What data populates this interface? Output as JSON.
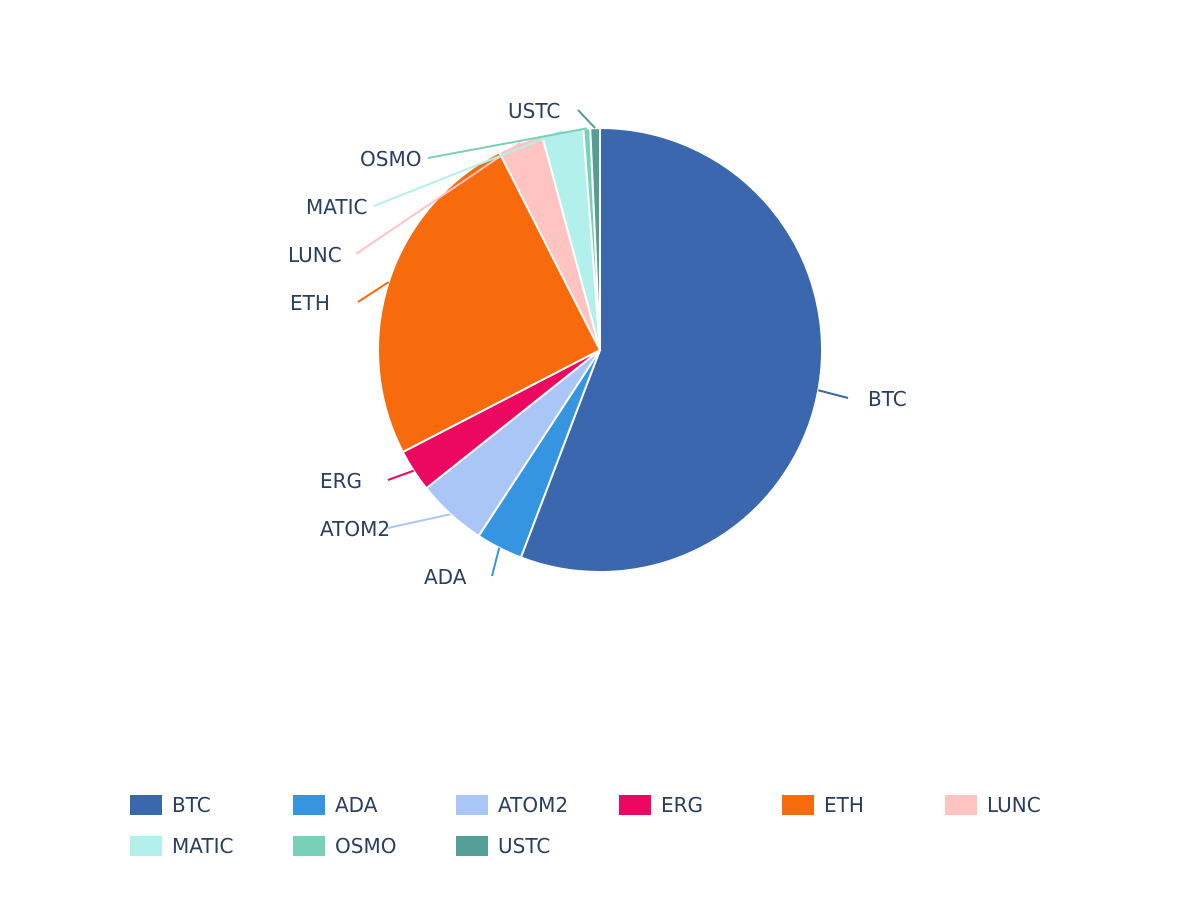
{
  "chart_data": {
    "type": "pie",
    "title": "",
    "categories": [
      "BTC",
      "ADA",
      "ATOM2",
      "ERG",
      "ETH",
      "LUNC",
      "MATIC",
      "OSMO",
      "USTC"
    ],
    "values": [
      55.8,
      3.4,
      5.1,
      3.1,
      25.1,
      3.3,
      3.0,
      0.5,
      0.7
    ],
    "colors": [
      "#3a67ad",
      "#3595e0",
      "#a9c6f7",
      "#ec0761",
      "#f76b0c",
      "#ffc3c2",
      "#b2f0eb",
      "#78d1b6",
      "#559e96"
    ],
    "label_position": "outside",
    "legend_position": "bottom"
  },
  "legend": {
    "items": [
      {
        "label": "BTC",
        "color": "#3a67ad"
      },
      {
        "label": "ADA",
        "color": "#3595e0"
      },
      {
        "label": "ATOM2",
        "color": "#a9c6f7"
      },
      {
        "label": "ERG",
        "color": "#ec0761"
      },
      {
        "label": "ETH",
        "color": "#f76b0c"
      },
      {
        "label": "LUNC",
        "color": "#ffc3c2"
      },
      {
        "label": "MATIC",
        "color": "#b2f0eb"
      },
      {
        "label": "OSMO",
        "color": "#78d1b6"
      },
      {
        "label": "USTC",
        "color": "#559e96"
      }
    ]
  }
}
